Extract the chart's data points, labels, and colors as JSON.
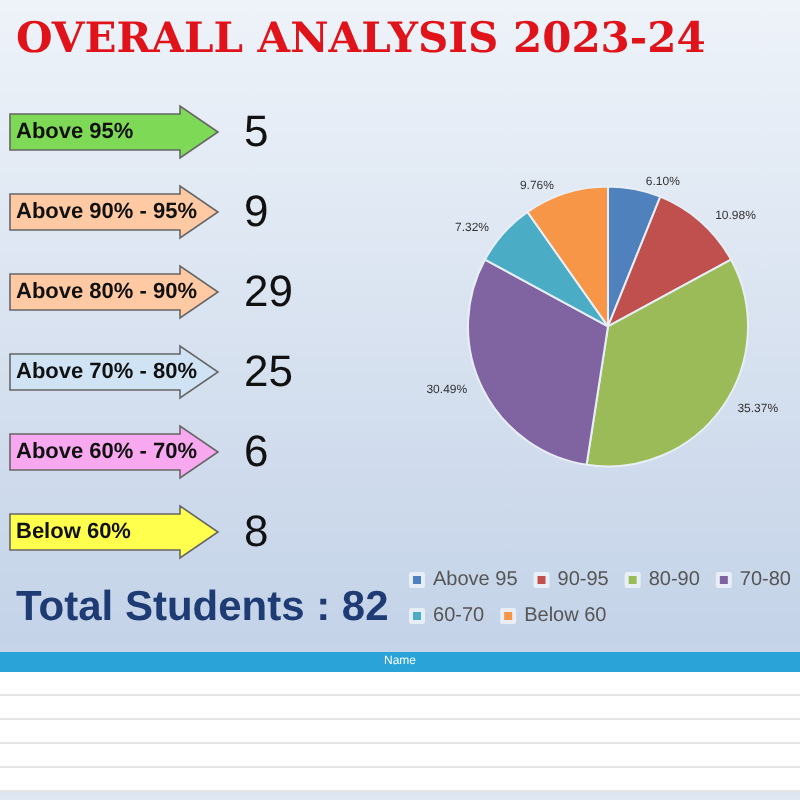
{
  "chart_data": {
    "type": "pie",
    "title": "OVERALL  ANALYSIS 2023-24",
    "categories": [
      "Above 95",
      "90-95",
      "80-90",
      "70-80",
      "60-70",
      "Below 60"
    ],
    "values": [
      6.1,
      10.98,
      35.37,
      30.49,
      7.32,
      9.76
    ],
    "colors": [
      "#4f81bd",
      "#c0504d",
      "#9bbb59",
      "#8064a2",
      "#4bacc6",
      "#f79646"
    ],
    "value_labels": [
      "6.10%",
      "10.98%",
      "35.37%",
      "30.49%",
      "7.32%",
      "9.76%"
    ],
    "legend": "bottom",
    "annotations": [
      "Above 95%",
      "5",
      "Above 90% - 95%",
      "9",
      "Above 80% - 90%",
      "29",
      "Above 70% - 80%",
      "25",
      "Above 60% - 70%",
      "6",
      "Below 60%",
      "8",
      "Total Students : 82",
      "Name"
    ]
  }
}
